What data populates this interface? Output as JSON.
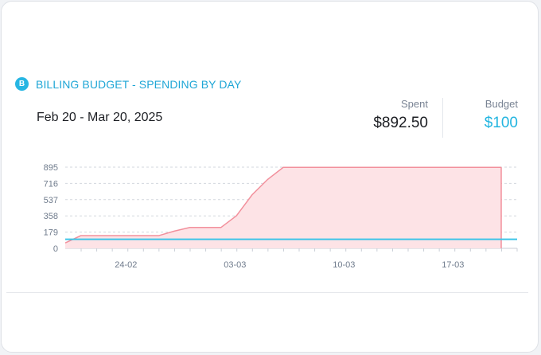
{
  "card": {
    "badge_letter": "B",
    "title": "BILLING BUDGET - SPENDING BY DAY",
    "date_range": "Feb 20 - Mar 20, 2025"
  },
  "stats": {
    "spent_label": "Spent",
    "spent_value": "$892.50",
    "budget_label": "Budget",
    "budget_value": "$100"
  },
  "colors": {
    "accent": "#23b5e0",
    "spend_line": "#f2909c",
    "spend_fill": "#fde3e6",
    "budget_line": "#3cc4e8"
  },
  "chart_data": {
    "type": "area",
    "x": [
      "2025-02-20",
      "2025-02-21",
      "2025-02-22",
      "2025-02-23",
      "2025-02-24",
      "2025-02-25",
      "2025-02-26",
      "2025-02-27",
      "2025-02-28",
      "2025-03-01",
      "2025-03-02",
      "2025-03-03",
      "2025-03-04",
      "2025-03-05",
      "2025-03-06",
      "2025-03-07",
      "2025-03-08",
      "2025-03-09",
      "2025-03-10",
      "2025-03-11",
      "2025-03-12",
      "2025-03-13",
      "2025-03-14",
      "2025-03-15",
      "2025-03-16",
      "2025-03-17",
      "2025-03-18",
      "2025-03-19",
      "2025-03-20"
    ],
    "series": [
      {
        "values": [
          60,
          140,
          140,
          140,
          140,
          140,
          140,
          190,
          230,
          230,
          230,
          360,
          590,
          760,
          892.5,
          892.5,
          892.5,
          892.5,
          892.5,
          892.5,
          892.5,
          892.5,
          892.5,
          892.5,
          892.5,
          892.5,
          892.5,
          892.5,
          892.5
        ]
      }
    ],
    "budget_line": 100,
    "y_ticks": [
      "895",
      "716",
      "537",
      "358",
      "179",
      "0"
    ],
    "x_ticks": [
      "24-02",
      "03-03",
      "10-03",
      "17-03"
    ],
    "ylim": [
      0,
      895
    ],
    "grid": true
  }
}
